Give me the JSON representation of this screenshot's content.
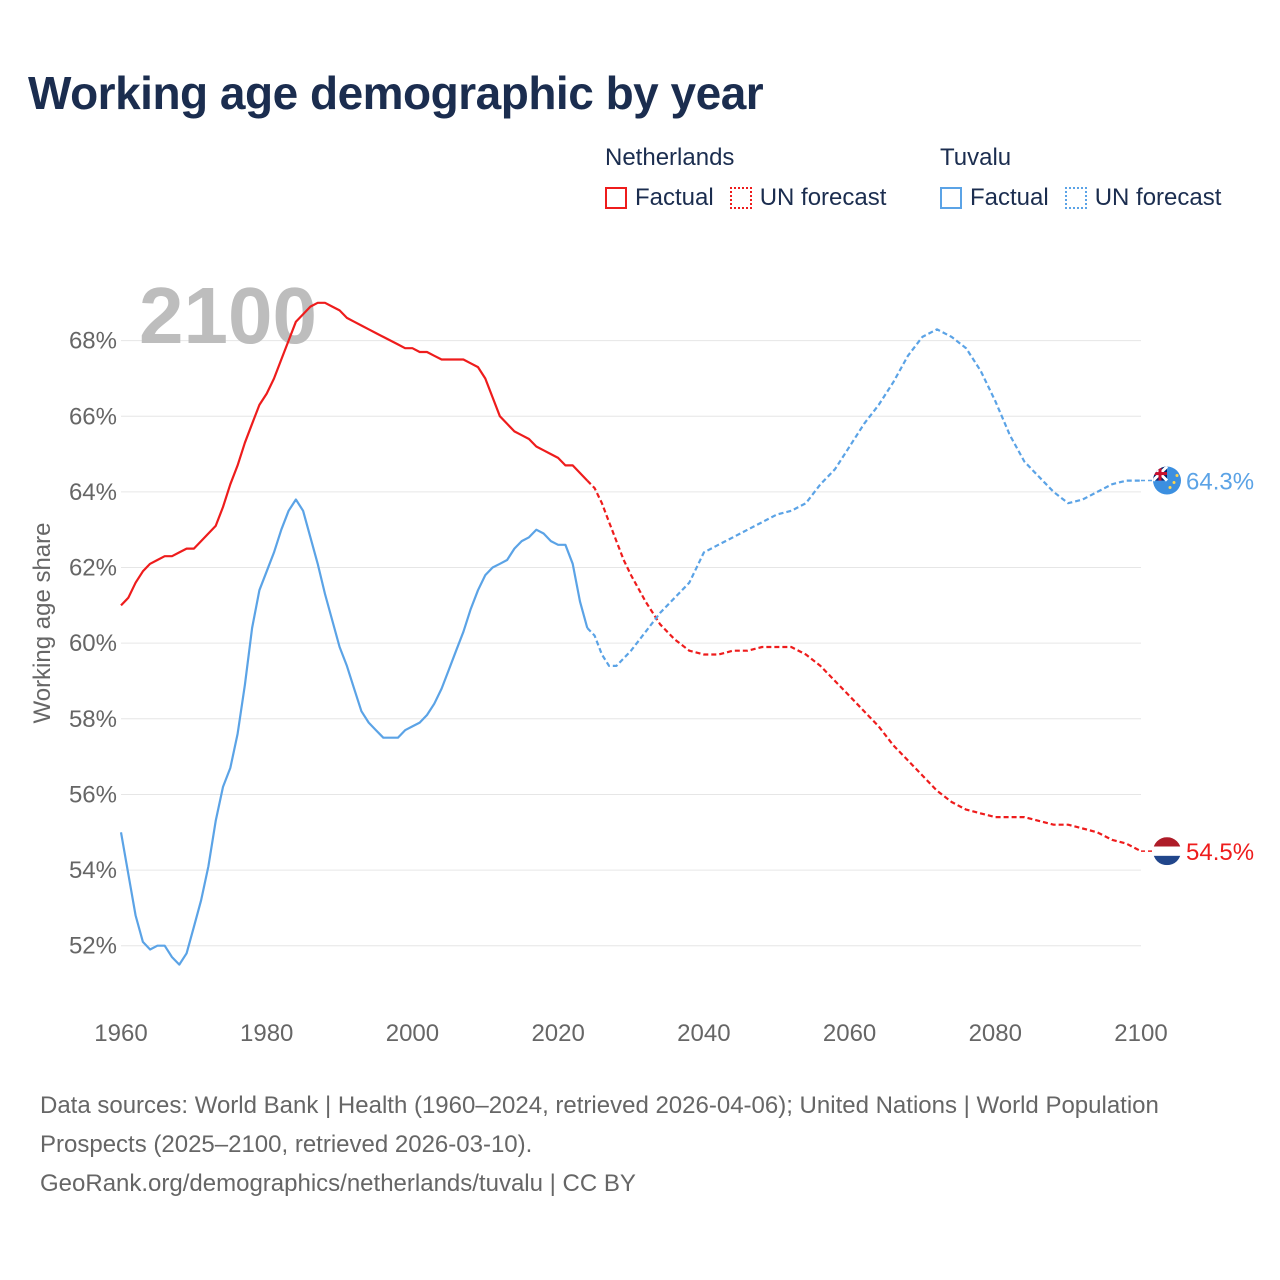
{
  "title": "Working age demographic by year",
  "year_label": "2100",
  "legend": [
    {
      "group": "Netherlands",
      "color": "#ee1c1c",
      "items": [
        {
          "label": "Factual",
          "style": "solid"
        },
        {
          "label": "UN forecast",
          "style": "dotted"
        }
      ]
    },
    {
      "group": "Tuvalu",
      "color": "#5ba3e6",
      "items": [
        {
          "label": "Factual",
          "style": "solid"
        },
        {
          "label": "UN forecast",
          "style": "dotted"
        }
      ]
    }
  ],
  "footer": {
    "sources": "Data sources: World Bank | Health (1960–2024, retrieved 2026-04-06); United Nations | World Population Prospects (2025–2100, retrieved 2026-03-10).",
    "credit": "GeoRank.org/demographics/netherlands/tuvalu | CC BY"
  },
  "chart_data": {
    "type": "line",
    "title": "Working age demographic by year",
    "xlabel": "",
    "ylabel": "Working age share",
    "xlim": [
      1960,
      2100
    ],
    "ylim": [
      50.3,
      70
    ],
    "x_ticks": [
      1960,
      1980,
      2000,
      2020,
      2040,
      2060,
      2080,
      2100
    ],
    "y_ticks": [
      52,
      54,
      56,
      58,
      60,
      62,
      64,
      66,
      68
    ],
    "grid": true,
    "factual_range": [
      1960,
      2024
    ],
    "forecast_range": [
      2024,
      2100
    ],
    "series": [
      {
        "name": "Netherlands",
        "color": "#ee1c1c",
        "end_label": "54.5%",
        "points": [
          [
            1960,
            61.0
          ],
          [
            1961,
            61.2
          ],
          [
            1962,
            61.6
          ],
          [
            1963,
            61.9
          ],
          [
            1964,
            62.1
          ],
          [
            1965,
            62.2
          ],
          [
            1966,
            62.3
          ],
          [
            1967,
            62.3
          ],
          [
            1968,
            62.4
          ],
          [
            1969,
            62.5
          ],
          [
            1970,
            62.5
          ],
          [
            1971,
            62.7
          ],
          [
            1972,
            62.9
          ],
          [
            1973,
            63.1
          ],
          [
            1974,
            63.6
          ],
          [
            1975,
            64.2
          ],
          [
            1976,
            64.7
          ],
          [
            1977,
            65.3
          ],
          [
            1978,
            65.8
          ],
          [
            1979,
            66.3
          ],
          [
            1980,
            66.6
          ],
          [
            1981,
            67.0
          ],
          [
            1982,
            67.5
          ],
          [
            1983,
            68.0
          ],
          [
            1984,
            68.5
          ],
          [
            1985,
            68.7
          ],
          [
            1986,
            68.9
          ],
          [
            1987,
            69.0
          ],
          [
            1988,
            69.0
          ],
          [
            1989,
            68.9
          ],
          [
            1990,
            68.8
          ],
          [
            1991,
            68.6
          ],
          [
            1992,
            68.5
          ],
          [
            1993,
            68.4
          ],
          [
            1994,
            68.3
          ],
          [
            1995,
            68.2
          ],
          [
            1996,
            68.1
          ],
          [
            1997,
            68.0
          ],
          [
            1998,
            67.9
          ],
          [
            1999,
            67.8
          ],
          [
            2000,
            67.8
          ],
          [
            2001,
            67.7
          ],
          [
            2002,
            67.7
          ],
          [
            2003,
            67.6
          ],
          [
            2004,
            67.5
          ],
          [
            2005,
            67.5
          ],
          [
            2006,
            67.5
          ],
          [
            2007,
            67.5
          ],
          [
            2008,
            67.4
          ],
          [
            2009,
            67.3
          ],
          [
            2010,
            67.0
          ],
          [
            2011,
            66.5
          ],
          [
            2012,
            66.0
          ],
          [
            2013,
            65.8
          ],
          [
            2014,
            65.6
          ],
          [
            2015,
            65.5
          ],
          [
            2016,
            65.4
          ],
          [
            2017,
            65.2
          ],
          [
            2018,
            65.1
          ],
          [
            2019,
            65.0
          ],
          [
            2020,
            64.9
          ],
          [
            2021,
            64.7
          ],
          [
            2022,
            64.7
          ],
          [
            2023,
            64.5
          ],
          [
            2024,
            64.3
          ],
          [
            2025,
            64.1
          ],
          [
            2026,
            63.7
          ],
          [
            2027,
            63.2
          ],
          [
            2028,
            62.7
          ],
          [
            2029,
            62.2
          ],
          [
            2030,
            61.8
          ],
          [
            2032,
            61.1
          ],
          [
            2034,
            60.5
          ],
          [
            2036,
            60.1
          ],
          [
            2038,
            59.8
          ],
          [
            2040,
            59.7
          ],
          [
            2042,
            59.7
          ],
          [
            2044,
            59.8
          ],
          [
            2046,
            59.8
          ],
          [
            2048,
            59.9
          ],
          [
            2050,
            59.9
          ],
          [
            2052,
            59.9
          ],
          [
            2054,
            59.7
          ],
          [
            2056,
            59.4
          ],
          [
            2058,
            59.0
          ],
          [
            2060,
            58.6
          ],
          [
            2062,
            58.2
          ],
          [
            2064,
            57.8
          ],
          [
            2066,
            57.3
          ],
          [
            2068,
            56.9
          ],
          [
            2070,
            56.5
          ],
          [
            2072,
            56.1
          ],
          [
            2074,
            55.8
          ],
          [
            2076,
            55.6
          ],
          [
            2078,
            55.5
          ],
          [
            2080,
            55.4
          ],
          [
            2082,
            55.4
          ],
          [
            2084,
            55.4
          ],
          [
            2086,
            55.3
          ],
          [
            2088,
            55.2
          ],
          [
            2090,
            55.2
          ],
          [
            2092,
            55.1
          ],
          [
            2094,
            55.0
          ],
          [
            2096,
            54.8
          ],
          [
            2098,
            54.7
          ],
          [
            2100,
            54.5
          ]
        ]
      },
      {
        "name": "Tuvalu",
        "color": "#5ba3e6",
        "end_label": "64.3%",
        "points": [
          [
            1960,
            55.0
          ],
          [
            1961,
            53.9
          ],
          [
            1962,
            52.8
          ],
          [
            1963,
            52.1
          ],
          [
            1964,
            51.9
          ],
          [
            1965,
            52.0
          ],
          [
            1966,
            52.0
          ],
          [
            1967,
            51.7
          ],
          [
            1968,
            51.5
          ],
          [
            1969,
            51.8
          ],
          [
            1970,
            52.5
          ],
          [
            1971,
            53.2
          ],
          [
            1972,
            54.1
          ],
          [
            1973,
            55.3
          ],
          [
            1974,
            56.2
          ],
          [
            1975,
            56.7
          ],
          [
            1976,
            57.6
          ],
          [
            1977,
            58.9
          ],
          [
            1978,
            60.4
          ],
          [
            1979,
            61.4
          ],
          [
            1980,
            61.9
          ],
          [
            1981,
            62.4
          ],
          [
            1982,
            63.0
          ],
          [
            1983,
            63.5
          ],
          [
            1984,
            63.8
          ],
          [
            1985,
            63.5
          ],
          [
            1986,
            62.8
          ],
          [
            1987,
            62.1
          ],
          [
            1988,
            61.3
          ],
          [
            1989,
            60.6
          ],
          [
            1990,
            59.9
          ],
          [
            1991,
            59.4
          ],
          [
            1992,
            58.8
          ],
          [
            1993,
            58.2
          ],
          [
            1994,
            57.9
          ],
          [
            1995,
            57.7
          ],
          [
            1996,
            57.5
          ],
          [
            1997,
            57.5
          ],
          [
            1998,
            57.5
          ],
          [
            1999,
            57.7
          ],
          [
            2000,
            57.8
          ],
          [
            2001,
            57.9
          ],
          [
            2002,
            58.1
          ],
          [
            2003,
            58.4
          ],
          [
            2004,
            58.8
          ],
          [
            2005,
            59.3
          ],
          [
            2006,
            59.8
          ],
          [
            2007,
            60.3
          ],
          [
            2008,
            60.9
          ],
          [
            2009,
            61.4
          ],
          [
            2010,
            61.8
          ],
          [
            2011,
            62.0
          ],
          [
            2012,
            62.1
          ],
          [
            2013,
            62.2
          ],
          [
            2014,
            62.5
          ],
          [
            2015,
            62.7
          ],
          [
            2016,
            62.8
          ],
          [
            2017,
            63.0
          ],
          [
            2018,
            62.9
          ],
          [
            2019,
            62.7
          ],
          [
            2020,
            62.6
          ],
          [
            2021,
            62.6
          ],
          [
            2022,
            62.1
          ],
          [
            2023,
            61.1
          ],
          [
            2024,
            60.4
          ],
          [
            2025,
            60.2
          ],
          [
            2026,
            59.7
          ],
          [
            2027,
            59.4
          ],
          [
            2028,
            59.4
          ],
          [
            2029,
            59.6
          ],
          [
            2030,
            59.8
          ],
          [
            2032,
            60.3
          ],
          [
            2034,
            60.8
          ],
          [
            2036,
            61.2
          ],
          [
            2038,
            61.6
          ],
          [
            2040,
            62.4
          ],
          [
            2042,
            62.6
          ],
          [
            2044,
            62.8
          ],
          [
            2046,
            63.0
          ],
          [
            2048,
            63.2
          ],
          [
            2050,
            63.4
          ],
          [
            2052,
            63.5
          ],
          [
            2054,
            63.7
          ],
          [
            2056,
            64.2
          ],
          [
            2058,
            64.6
          ],
          [
            2060,
            65.2
          ],
          [
            2062,
            65.8
          ],
          [
            2064,
            66.3
          ],
          [
            2066,
            66.9
          ],
          [
            2068,
            67.6
          ],
          [
            2070,
            68.1
          ],
          [
            2072,
            68.3
          ],
          [
            2074,
            68.1
          ],
          [
            2076,
            67.8
          ],
          [
            2078,
            67.2
          ],
          [
            2080,
            66.4
          ],
          [
            2082,
            65.5
          ],
          [
            2084,
            64.8
          ],
          [
            2086,
            64.4
          ],
          [
            2088,
            64.0
          ],
          [
            2090,
            63.7
          ],
          [
            2092,
            63.8
          ],
          [
            2094,
            64.0
          ],
          [
            2096,
            64.2
          ],
          [
            2098,
            64.3
          ],
          [
            2100,
            64.3
          ]
        ]
      }
    ]
  }
}
